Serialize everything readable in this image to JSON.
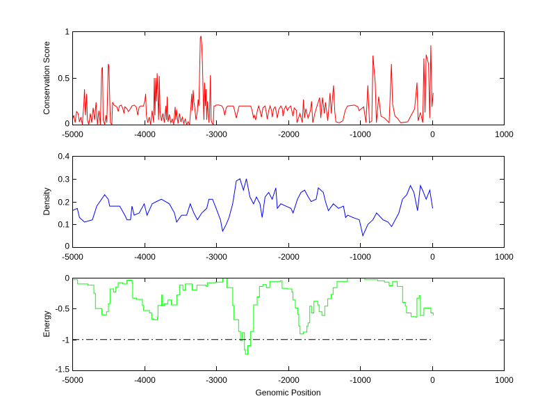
{
  "figure": {
    "background": "#ffffff"
  },
  "chart_data": [
    {
      "type": "line",
      "title": "",
      "xlabel": "",
      "ylabel": "Conservation Score",
      "xlim": [
        -5000,
        1000
      ],
      "ylim": [
        0,
        1
      ],
      "xticks": [
        -5000,
        -4000,
        -3000,
        -2000,
        -1000,
        0,
        1000
      ],
      "yticks": [
        0,
        0.5,
        1
      ],
      "ytick_labels": [
        "0",
        "0.5",
        "1"
      ],
      "grid": false,
      "series": [
        {
          "name": "conservation",
          "color": "#ff0000",
          "style": "solid",
          "x": [
            -5000,
            -4980,
            -4960,
            -4940,
            -4920,
            -4900,
            -4880,
            -4860,
            -4840,
            -4830,
            -4815,
            -4800,
            -4790,
            -4770,
            -4750,
            -4730,
            -4710,
            -4690,
            -4670,
            -4650,
            -4630,
            -4610,
            -4600,
            -4590,
            -4580,
            -4570,
            -4550,
            -4530,
            -4520,
            -4500,
            -4490,
            -4480,
            -4470,
            -4450,
            -4440,
            -4420,
            -4400,
            -4380,
            -4360,
            -4345,
            -4320,
            -4300,
            -4280,
            -4270,
            -4240,
            -4220,
            -4200,
            -4170,
            -4140,
            -4110,
            -4090,
            -4070,
            -4050,
            -4010,
            -3990,
            -3980,
            -3970,
            -3950,
            -3930,
            -3910,
            -3890,
            -3870,
            -3860,
            -3850,
            -3840,
            -3830,
            -3820,
            -3810,
            -3800,
            -3790,
            -3780,
            -3760,
            -3740,
            -3720,
            -3700,
            -3690,
            -3680,
            -3670,
            -3650,
            -3630,
            -3610,
            -3590,
            -3570,
            -3560,
            -3550,
            -3530,
            -3510,
            -3490,
            -3470,
            -3450,
            -3430,
            -3410,
            -3390,
            -3370,
            -3350,
            -3340,
            -3330,
            -3320,
            -3310,
            -3300,
            -3280,
            -3260,
            -3250,
            -3240,
            -3230,
            -3220,
            -3210,
            -3200,
            -3190,
            -3180,
            -3170,
            -3160,
            -3150,
            -3140,
            -3130,
            -3120,
            -3110,
            -3100,
            -3090,
            -3080,
            -3070,
            -3060,
            -3040,
            -3030,
            -3010,
            -3000,
            -2960,
            -2920,
            -2900,
            -2880,
            -2860,
            -2840,
            -2820,
            -2760,
            -2740,
            -2720,
            -2700,
            -2680,
            -2520,
            -2500,
            -2480,
            -2470,
            -2450,
            -2430,
            -2410,
            -2390,
            -2370,
            -2350,
            -2320,
            -2300,
            -2290,
            -2270,
            -2250,
            -2230,
            -2220,
            -2200,
            -2180,
            -2160,
            -2150,
            -2130,
            -2100,
            -2080,
            -2070,
            -2050,
            -2030,
            -2010,
            -1990,
            -1963,
            -1931,
            -1915,
            -1883,
            -1876,
            -1835,
            -1802,
            -1786,
            -1770,
            -1754,
            -1722,
            -1690,
            -1673,
            -1657,
            -1625,
            -1561,
            -1545,
            -1522,
            -1496,
            -1480,
            -1448,
            -1416,
            -1400,
            -1368,
            -1351,
            -1335,
            -1287,
            -1239,
            -1207,
            -1174,
            -1078,
            -1029,
            -1013,
            -949,
            -917,
            -891,
            -869,
            -836,
            -820,
            -788,
            -772,
            -740,
            -708,
            -659,
            -595,
            -563,
            -547,
            -514,
            -482,
            -434,
            -337,
            -241,
            -208,
            -192,
            -160,
            -128,
            -112,
            -96,
            -80,
            -47,
            -31,
            -15,
            1,
            17
          ],
          "y": [
            0.05,
            0.1,
            0.02,
            0.14,
            0.12,
            0.03,
            0.08,
            0.0,
            0.22,
            0.38,
            0.1,
            0.33,
            0.05,
            0.0,
            0.12,
            0.02,
            0.18,
            0.05,
            0.24,
            0.0,
            0.15,
            0.0,
            0.32,
            0.6,
            0.61,
            0.05,
            0.0,
            0.1,
            0.02,
            0.65,
            0.62,
            0.3,
            0.02,
            0.0,
            0.24,
            0.21,
            0.2,
            0.19,
            0.14,
            0.2,
            0.21,
            0.18,
            0.12,
            0.19,
            0.17,
            0.14,
            0.16,
            0.2,
            0.21,
            0.19,
            0.1,
            0.19,
            0.2,
            0.2,
            0.26,
            0.33,
            0.1,
            0.02,
            0.08,
            0.0,
            0.15,
            0.02,
            0.5,
            0.1,
            0.5,
            0.25,
            0.55,
            0.3,
            0.05,
            0.52,
            0.15,
            0.04,
            0.12,
            0.02,
            0.2,
            0.05,
            0.3,
            0.03,
            0.11,
            0.02,
            0.06,
            0.0,
            0.19,
            0.05,
            0.16,
            0.01,
            0.12,
            0.03,
            0.08,
            0.01,
            0.06,
            0.0,
            0.03,
            0.0,
            0.2,
            0.33,
            0.15,
            0.37,
            0.25,
            0.2,
            0.05,
            0.15,
            0.27,
            0.2,
            0.55,
            0.93,
            0.95,
            0.85,
            0.65,
            0.3,
            0.05,
            0.45,
            0.2,
            0.38,
            0.05,
            0.25,
            0.15,
            0.02,
            0.18,
            0.53,
            0.05,
            0.02,
            0.0,
            0.2,
            0.2,
            0.21,
            0.21,
            0.2,
            0.17,
            0.1,
            0.18,
            0.2,
            0.2,
            0.2,
            0.14,
            0.07,
            0.14,
            0.2,
            0.2,
            0.15,
            0.07,
            0.1,
            0.05,
            0.14,
            0.2,
            0.15,
            0.08,
            0.18,
            0.2,
            0.12,
            0.06,
            0.15,
            0.2,
            0.15,
            0.08,
            0.17,
            0.19,
            0.12,
            0.07,
            0.16,
            0.2,
            0.17,
            0.09,
            0.17,
            0.2,
            0.15,
            0.18,
            0.2,
            0.09,
            0.18,
            0.15,
            0.02,
            0.12,
            0.02,
            0.27,
            0.07,
            0.17,
            0.07,
            0.15,
            0.25,
            0.02,
            0.13,
            0.29,
            0.07,
            0.29,
            0.12,
            0.24,
            0.04,
            0.34,
            0.12,
            0.42,
            0.14,
            0.03,
            0.02,
            0.04,
            0.15,
            0.2,
            0.21,
            0.19,
            0.15,
            0.19,
            0.02,
            0.42,
            0.02,
            0.04,
            0.74,
            0.45,
            0.02,
            0.3,
            0.09,
            0.07,
            0.02,
            0.65,
            0.22,
            0.09,
            0.07,
            0.02,
            0.03,
            0.17,
            0.45,
            0.04,
            0.13,
            0.02,
            0.71,
            0.13,
            0.75,
            0.65,
            0.07,
            0.85,
            0.19,
            0.34
          ]
        }
      ]
    },
    {
      "type": "line",
      "title": "",
      "xlabel": "",
      "ylabel": "Density",
      "xlim": [
        -5000,
        1000
      ],
      "ylim": [
        0,
        0.4
      ],
      "xticks": [
        -5000,
        -4000,
        -3000,
        -2000,
        -1000,
        0,
        1000
      ],
      "yticks": [
        0,
        0.1,
        0.2,
        0.3,
        0.4
      ],
      "ytick_labels": [
        "0",
        "0.1",
        "0.2",
        "0.3",
        "0.4"
      ],
      "grid": false,
      "series": [
        {
          "name": "density",
          "color": "#0000ff",
          "style": "solid",
          "x": [
            -5000,
            -4930,
            -4900,
            -4830,
            -4720,
            -4660,
            -4550,
            -4500,
            -4480,
            -4340,
            -4270,
            -4240,
            -4190,
            -4170,
            -4140,
            -4070,
            -4000,
            -3960,
            -3890,
            -3830,
            -3760,
            -3650,
            -3580,
            -3550,
            -3480,
            -3410,
            -3360,
            -3310,
            -3260,
            -3200,
            -3130,
            -3100,
            -3050,
            -3000,
            -2940,
            -2910,
            -2860,
            -2820,
            -2770,
            -2720,
            -2670,
            -2620,
            -2580,
            -2530,
            -2480,
            -2440,
            -2390,
            -2360,
            -2320,
            -2270,
            -2220,
            -2170,
            -2150,
            -2100,
            -2030,
            -1960,
            -1930,
            -1870,
            -1820,
            -1770,
            -1720,
            -1680,
            -1610,
            -1580,
            -1510,
            -1480,
            -1440,
            -1370,
            -1300,
            -1230,
            -1200,
            -1170,
            -1100,
            -1010,
            -960,
            -890,
            -820,
            -770,
            -680,
            -610,
            -560,
            -510,
            -460,
            -410,
            -350,
            -300,
            -250,
            -200,
            -160,
            -130,
            -80,
            -30,
            10
          ],
          "y": [
            0.16,
            0.17,
            0.13,
            0.11,
            0.12,
            0.18,
            0.23,
            0.21,
            0.18,
            0.18,
            0.14,
            0.12,
            0.12,
            0.18,
            0.14,
            0.15,
            0.19,
            0.14,
            0.19,
            0.2,
            0.21,
            0.19,
            0.15,
            0.11,
            0.14,
            0.14,
            0.19,
            0.15,
            0.12,
            0.15,
            0.17,
            0.21,
            0.21,
            0.17,
            0.12,
            0.07,
            0.1,
            0.13,
            0.19,
            0.29,
            0.3,
            0.25,
            0.3,
            0.22,
            0.19,
            0.22,
            0.19,
            0.13,
            0.22,
            0.24,
            0.21,
            0.26,
            0.17,
            0.19,
            0.18,
            0.17,
            0.15,
            0.21,
            0.24,
            0.25,
            0.22,
            0.2,
            0.21,
            0.26,
            0.24,
            0.2,
            0.16,
            0.19,
            0.17,
            0.18,
            0.13,
            0.14,
            0.13,
            0.12,
            0.05,
            0.1,
            0.12,
            0.15,
            0.12,
            0.11,
            0.09,
            0.12,
            0.15,
            0.21,
            0.23,
            0.27,
            0.24,
            0.16,
            0.27,
            0.25,
            0.21,
            0.25,
            0.17
          ]
        }
      ]
    },
    {
      "type": "line",
      "title": "",
      "xlabel": "Genomic Position",
      "ylabel": "Energy",
      "xlim": [
        -5000,
        1000
      ],
      "ylim": [
        -1.5,
        0
      ],
      "xticks": [
        -5000,
        -4000,
        -3000,
        -2000,
        -1000,
        0,
        1000
      ],
      "yticks": [
        -1.5,
        -1,
        -0.5,
        0
      ],
      "ytick_labels": [
        "-1.5",
        "-1",
        "-0.5",
        "0"
      ],
      "grid": false,
      "series": [
        {
          "name": "energy",
          "color": "#00ff00",
          "style": "stairs",
          "x": [
            -5000,
            -4926,
            -4781,
            -4700,
            -4678,
            -4588,
            -4524,
            -4498,
            -4475,
            -4427,
            -4394,
            -4362,
            -4298,
            -4240,
            -4169,
            -4160,
            -4105,
            -4024,
            -4008,
            -3928,
            -3896,
            -3863,
            -3815,
            -3809,
            -3757,
            -3744,
            -3718,
            -3670,
            -3622,
            -3548,
            -3509,
            -3461,
            -3428,
            -3332,
            -3268,
            -3139,
            -3123,
            -3010,
            -2907,
            -2849,
            -2769,
            -2752,
            -2688,
            -2662,
            -2640,
            -2607,
            -2592,
            -2559,
            -2520,
            -2479,
            -2430,
            -2398,
            -2350,
            -2302,
            -2254,
            -2109,
            -2083,
            -2012,
            -1947,
            -1931,
            -1899,
            -1867,
            -1851,
            -1834,
            -1786,
            -1738,
            -1722,
            -1699,
            -1674,
            -1641,
            -1587,
            -1568,
            -1529,
            -1490,
            -1448,
            -1400,
            -1374,
            -1319,
            -1175,
            -1158,
            -933,
            -756,
            -660,
            -595,
            -547,
            -482,
            -418,
            -408,
            -370,
            -354,
            -289,
            -225,
            -209,
            -177,
            -160,
            -112,
            -64,
            -15,
            17
          ],
          "y": [
            -0.03,
            -0.1,
            -0.12,
            -0.25,
            -0.5,
            -0.6,
            -0.55,
            -0.42,
            -0.18,
            -0.23,
            -0.15,
            -0.08,
            -0.1,
            -0.04,
            -0.08,
            -0.33,
            -0.35,
            -0.45,
            -0.53,
            -0.57,
            -0.67,
            -0.68,
            -0.64,
            -0.45,
            -0.28,
            -0.45,
            -0.42,
            -0.36,
            -0.44,
            -0.28,
            -0.12,
            -0.2,
            -0.1,
            -0.2,
            -0.12,
            -0.14,
            -0.08,
            -0.07,
            0.0,
            -0.16,
            -0.45,
            -0.68,
            -0.87,
            -1.02,
            -0.89,
            -1.17,
            -1.24,
            -1.1,
            -0.87,
            -0.44,
            -0.31,
            -0.14,
            -0.11,
            -0.16,
            -0.06,
            -0.05,
            -0.17,
            -0.18,
            -0.23,
            -0.36,
            -0.49,
            -0.59,
            -0.78,
            -0.91,
            -0.88,
            -0.78,
            -0.73,
            -0.46,
            -0.57,
            -0.38,
            -0.44,
            -0.55,
            -0.61,
            -0.46,
            -0.34,
            -0.27,
            -0.16,
            -0.06,
            0.0,
            0.05,
            -0.03,
            -0.05,
            -0.07,
            -0.13,
            -0.06,
            -0.14,
            -0.14,
            -0.4,
            -0.46,
            -0.57,
            -0.63,
            -0.64,
            -0.33,
            -0.29,
            -0.61,
            -0.49,
            -0.49,
            -0.57,
            -0.61
          ]
        },
        {
          "name": "threshold",
          "color": "#000000",
          "style": "dash-dot",
          "x": [
            -5000,
            0
          ],
          "y": [
            -1,
            -1
          ]
        }
      ]
    }
  ]
}
